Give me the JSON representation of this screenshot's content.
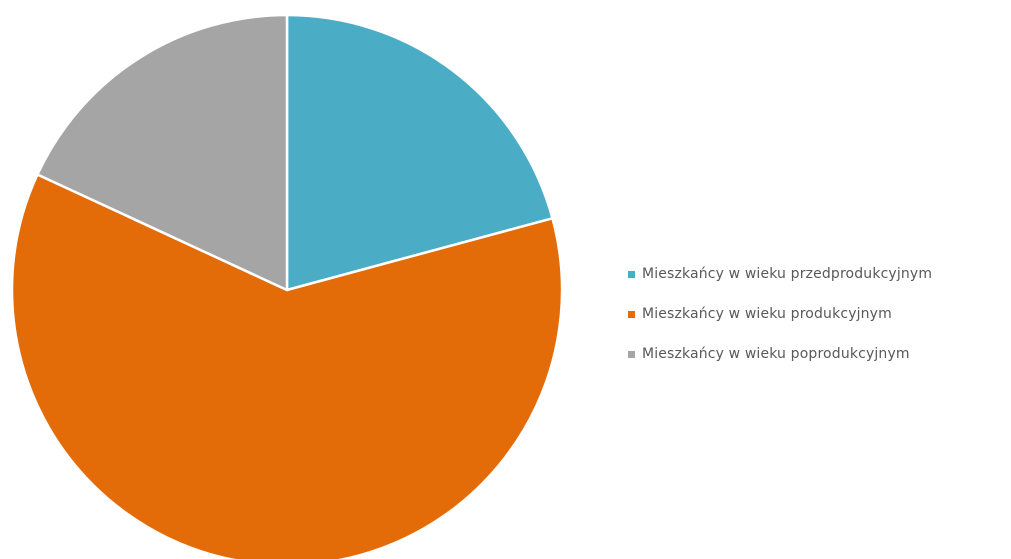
{
  "chart_data": {
    "type": "pie",
    "title": "",
    "legend_position": "right",
    "start_angle": "12 o'clock, clockwise",
    "slices": [
      {
        "label": "Mieszkańcy w wieku przedprodukcyjnym",
        "value": 20.8,
        "color": "#4BACC6"
      },
      {
        "label": "Mieszkańcy w wieku produkcyjnym",
        "value": 61.1,
        "color": "#E36C09"
      },
      {
        "label": "Mieszkańcy w wieku poprodukcyjnym",
        "value": 18.1,
        "color": "#A5A5A5"
      }
    ]
  }
}
